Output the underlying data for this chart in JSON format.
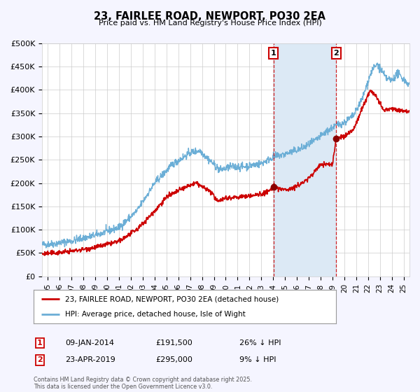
{
  "title": "23, FAIRLEE ROAD, NEWPORT, PO30 2EA",
  "subtitle": "Price paid vs. HM Land Registry's House Price Index (HPI)",
  "ylabel_ticks": [
    "£0",
    "£50K",
    "£100K",
    "£150K",
    "£200K",
    "£250K",
    "£300K",
    "£350K",
    "£400K",
    "£450K",
    "£500K"
  ],
  "ytick_values": [
    0,
    50000,
    100000,
    150000,
    200000,
    250000,
    300000,
    350000,
    400000,
    450000,
    500000
  ],
  "ylim": [
    0,
    500000
  ],
  "xlim_start": 1994.5,
  "xlim_end": 2025.5,
  "hpi_color": "#6baed6",
  "price_color": "#cc0000",
  "dot_color": "#8b0000",
  "transaction1_date": "09-JAN-2014",
  "transaction1_price": 191500,
  "transaction1_label": "1",
  "transaction1_x": 2014.03,
  "transaction2_date": "23-APR-2019",
  "transaction2_price": 295000,
  "transaction2_label": "2",
  "transaction2_x": 2019.31,
  "legend_label_red": "23, FAIRLEE ROAD, NEWPORT, PO30 2EA (detached house)",
  "legend_label_blue": "HPI: Average price, detached house, Isle of Wight",
  "footnote": "Contains HM Land Registry data © Crown copyright and database right 2025.\nThis data is licensed under the Open Government Licence v3.0.",
  "background_color": "#f5f5ff",
  "plot_background": "#ffffff",
  "grid_color": "#cccccc",
  "shade_color": "#dce9f5",
  "xtick_labels": [
    "95",
    "96",
    "97",
    "98",
    "99",
    "00",
    "01",
    "02",
    "03",
    "04",
    "05",
    "06",
    "07",
    "08",
    "09",
    "10",
    "11",
    "12",
    "13",
    "14",
    "15",
    "16",
    "17",
    "18",
    "19",
    "20",
    "21",
    "22",
    "23",
    "24",
    "25"
  ],
  "xtick_values": [
    1995,
    1996,
    1997,
    1998,
    1999,
    2000,
    2001,
    2002,
    2003,
    2004,
    2005,
    2006,
    2007,
    2008,
    2009,
    2010,
    2011,
    2012,
    2013,
    2014,
    2015,
    2016,
    2017,
    2018,
    2019,
    2020,
    2021,
    2022,
    2023,
    2024,
    2025
  ]
}
